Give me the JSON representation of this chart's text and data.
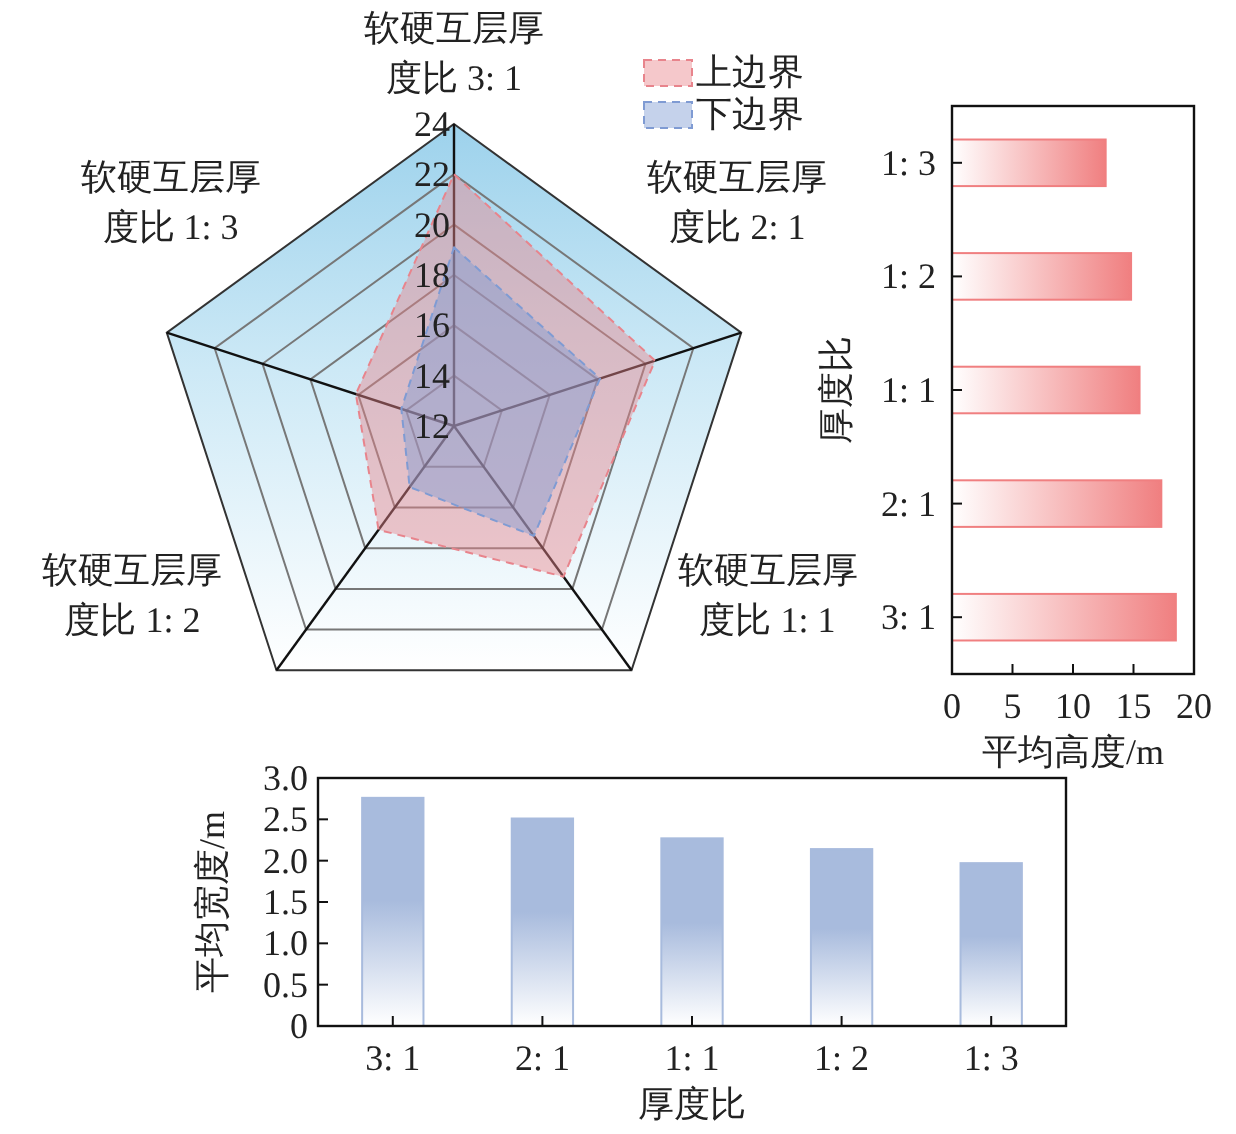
{
  "chart_data": [
    {
      "type": "radar",
      "categories": [
        "软硬互层厚度比 3: 1",
        "软硬互层厚度比 2: 1",
        "软硬互层厚度比 1: 1",
        "软硬互层厚度比 1: 2",
        "软硬互层厚度比 1: 3"
      ],
      "ylim": [
        12,
        24
      ],
      "yticks": [
        12,
        14,
        16,
        18,
        20,
        22,
        24
      ],
      "line_style": "dashed",
      "legend": "top right",
      "series": [
        {
          "name": "上边界",
          "color": "#e8848c",
          "values": [
            22.0,
            20.4,
            19.4,
            17.1,
            16.1
          ]
        },
        {
          "name": "下边界",
          "color": "#7f9bd3",
          "values": [
            19.1,
            18.1,
            17.4,
            15.0,
            14.2
          ]
        }
      ]
    },
    {
      "type": "bar",
      "orientation": "horizontal",
      "categories": [
        "1: 3",
        "1: 2",
        "1: 1",
        "2: 1",
        "3: 1"
      ],
      "values": [
        12.7,
        14.8,
        15.5,
        17.3,
        18.5
      ],
      "color": "#f07f80",
      "xlim": [
        0,
        20
      ],
      "xticks": [
        0,
        5,
        10,
        15,
        20
      ],
      "xlabel": "平均高度/m",
      "ylabel": "厚度比"
    },
    {
      "type": "bar",
      "categories": [
        "3: 1",
        "2: 1",
        "1: 1",
        "1: 2",
        "1: 3"
      ],
      "values": [
        2.76,
        2.51,
        2.27,
        2.14,
        1.97
      ],
      "color": "#a8bbdd",
      "ylim": [
        0,
        3
      ],
      "yticks": [
        0,
        0.5,
        {
          "value": 1,
          "label": "1.0"
        },
        1.5,
        {
          "value": 2,
          "label": "2.0"
        },
        2.5,
        {
          "value": 3,
          "label": "3.0"
        }
      ],
      "xlabel": "厚度比",
      "ylabel": "平均宽度/m"
    }
  ]
}
